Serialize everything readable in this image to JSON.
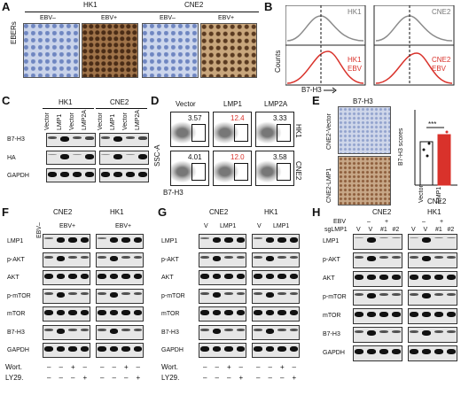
{
  "panels": [
    "A",
    "B",
    "C",
    "D",
    "E",
    "F",
    "G",
    "H"
  ],
  "A": {
    "row_label": "EBERs",
    "groups": [
      {
        "name": "HK1",
        "cols": [
          "EBV–",
          "EBV+"
        ]
      },
      {
        "name": "CNE2",
        "cols": [
          "EBV–",
          "EBV+"
        ]
      }
    ]
  },
  "B": {
    "y_label": "Counts",
    "x_label": "B7-H3",
    "plots": [
      {
        "top": "HK1",
        "bottom": "HK1\nEBV",
        "bottom_line1": "HK1",
        "bottom_line2": "EBV"
      },
      {
        "top": "CNE2",
        "bottom_line1": "CNE2",
        "bottom_line2": "EBV"
      }
    ]
  },
  "C": {
    "groups": [
      "HK1",
      "CNE2"
    ],
    "lanes": [
      "Vector",
      "LMP1",
      "Vector",
      "LMP2A"
    ],
    "rows": [
      "B7-H3",
      "HA",
      "GAPDH"
    ]
  },
  "D": {
    "cols": [
      "Vector",
      "LMP1",
      "LMP2A"
    ],
    "rows": [
      "HK1",
      "CNE2"
    ],
    "y_label": "SSC-A",
    "x_label": "B7-H3",
    "values": [
      [
        "3.57",
        "12.4",
        "3.33"
      ],
      [
        "4.01",
        "12.0",
        "3.58"
      ]
    ]
  },
  "E": {
    "title": "B7-H3",
    "img_labels": [
      "CNE2-Vector",
      "CNE2-LMP1"
    ],
    "y_label": "B7-H3 scores",
    "x_label": "CNE2",
    "sig": "***",
    "categories": [
      "Vector",
      "LMP1"
    ],
    "yticks": [
      "0",
      "2",
      "4",
      "6",
      "8",
      "10",
      "12",
      "15"
    ]
  },
  "F": {
    "groups": [
      "CNE2",
      "HK1"
    ],
    "sub": [
      "EBV–",
      "EBV+",
      "EBV+"
    ],
    "rows": [
      "LMP1",
      "p-AKT",
      "AKT",
      "p-mTOR",
      "mTOR",
      "B7-H3",
      "GAPDH"
    ],
    "treat_rows": [
      {
        "label": "Wort.",
        "values": [
          "–",
          "–",
          "+",
          "–",
          "–",
          "–",
          "+",
          "–"
        ]
      },
      {
        "label": "LY29.",
        "values": [
          "–",
          "–",
          "–",
          "+",
          "–",
          "–",
          "–",
          "+"
        ]
      }
    ]
  },
  "G": {
    "groups": [
      "CNE2",
      "HK1"
    ],
    "lane_v": [
      "V",
      "V"
    ],
    "sub": [
      "LMP1",
      "LMP1"
    ],
    "rows": [
      "LMP1",
      "p-AKT",
      "AKT",
      "p-mTOR",
      "mTOR",
      "B7-H3",
      "GAPDH"
    ],
    "treat_rows": [
      {
        "label": "Wort.",
        "values": [
          "–",
          "–",
          "+",
          "–",
          "–",
          "–",
          "+",
          "–"
        ]
      },
      {
        "label": "LY29.",
        "values": [
          "–",
          "–",
          "–",
          "+",
          "–",
          "–",
          "–",
          "+"
        ]
      }
    ]
  },
  "H": {
    "groups": [
      "CNE2",
      "HK1"
    ],
    "ebv_label": "EBV",
    "sg_label": "sgLMP1",
    "ebv_vals": [
      "–",
      "+",
      "–",
      "+"
    ],
    "sg_vals": [
      "V",
      "V",
      "#1",
      "#2",
      "V",
      "V",
      "#1",
      "#2"
    ],
    "rows": [
      "LMP1",
      "p-AKT",
      "AKT",
      "p-mTOR",
      "mTOR",
      "B7-H3",
      "GAPDH"
    ]
  },
  "colors": {
    "red": "#d9322b",
    "gray": "#8c8c8c",
    "ihc_blue": "#7f93c4",
    "ihc_brown": "#9a6a3d"
  }
}
